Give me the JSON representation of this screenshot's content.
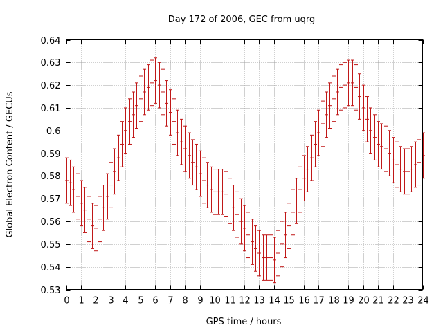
{
  "chart_data": {
    "type": "line",
    "title": "Day 172 of 2006, GEC from uqrg",
    "xlabel": "GPS time / hours",
    "ylabel": "Global Electron Content / GECUs",
    "xlim": [
      0,
      24
    ],
    "ylim": [
      0.53,
      0.64
    ],
    "xticks": [
      "0",
      "1",
      "2",
      "3",
      "4",
      "5",
      "6",
      "7",
      "8",
      "9",
      "10",
      "11",
      "12",
      "13",
      "14",
      "15",
      "16",
      "17",
      "18",
      "19",
      "20",
      "21",
      "22",
      "23",
      "24"
    ],
    "yticks": [
      "0.53",
      "0.54",
      "0.55",
      "0.56",
      "0.57",
      "0.58",
      "0.59",
      "0.6",
      "0.61",
      "0.62",
      "0.63",
      "0.64"
    ],
    "grid": true,
    "series_color": "#c01818",
    "series": [
      {
        "name": "GEC",
        "style": "errorbars",
        "x": [
          0.0,
          0.25,
          0.5,
          0.75,
          1.0,
          1.25,
          1.5,
          1.75,
          2.0,
          2.25,
          2.5,
          2.75,
          3.0,
          3.25,
          3.5,
          3.75,
          4.0,
          4.25,
          4.5,
          4.75,
          5.0,
          5.25,
          5.5,
          5.75,
          6.0,
          6.25,
          6.5,
          6.75,
          7.0,
          7.25,
          7.5,
          7.75,
          8.0,
          8.25,
          8.5,
          8.75,
          9.0,
          9.25,
          9.5,
          9.75,
          10.0,
          10.25,
          10.5,
          10.75,
          11.0,
          11.25,
          11.5,
          11.75,
          12.0,
          12.25,
          12.5,
          12.75,
          13.0,
          13.25,
          13.5,
          13.75,
          14.0,
          14.25,
          14.5,
          14.75,
          15.0,
          15.25,
          15.5,
          15.75,
          16.0,
          16.25,
          16.5,
          16.75,
          17.0,
          17.25,
          17.5,
          17.75,
          18.0,
          18.25,
          18.5,
          18.75,
          19.0,
          19.25,
          19.5,
          19.75,
          20.0,
          20.25,
          20.5,
          20.75,
          21.0,
          21.25,
          21.5,
          21.75,
          22.0,
          22.25,
          22.5,
          22.75,
          23.0,
          23.25,
          23.5,
          23.75,
          24.0
        ],
        "y": [
          0.578,
          0.577,
          0.574,
          0.571,
          0.568,
          0.565,
          0.561,
          0.558,
          0.557,
          0.561,
          0.566,
          0.571,
          0.576,
          0.582,
          0.588,
          0.594,
          0.6,
          0.604,
          0.607,
          0.611,
          0.614,
          0.617,
          0.619,
          0.621,
          0.622,
          0.62,
          0.617,
          0.612,
          0.608,
          0.604,
          0.599,
          0.595,
          0.592,
          0.589,
          0.586,
          0.584,
          0.581,
          0.578,
          0.576,
          0.574,
          0.573,
          0.573,
          0.573,
          0.572,
          0.569,
          0.566,
          0.563,
          0.56,
          0.557,
          0.554,
          0.551,
          0.548,
          0.546,
          0.544,
          0.544,
          0.544,
          0.543,
          0.546,
          0.55,
          0.554,
          0.558,
          0.564,
          0.569,
          0.574,
          0.579,
          0.583,
          0.588,
          0.594,
          0.599,
          0.603,
          0.607,
          0.611,
          0.614,
          0.617,
          0.619,
          0.62,
          0.621,
          0.621,
          0.619,
          0.615,
          0.61,
          0.605,
          0.6,
          0.597,
          0.594,
          0.593,
          0.592,
          0.59,
          0.587,
          0.585,
          0.583,
          0.582,
          0.582,
          0.583,
          0.585,
          0.586,
          0.589
        ],
        "err": [
          0.01,
          0.01,
          0.01,
          0.01,
          0.01,
          0.01,
          0.01,
          0.01,
          0.01,
          0.01,
          0.01,
          0.01,
          0.01,
          0.01,
          0.01,
          0.01,
          0.01,
          0.01,
          0.01,
          0.01,
          0.01,
          0.01,
          0.01,
          0.01,
          0.01,
          0.01,
          0.01,
          0.01,
          0.01,
          0.01,
          0.01,
          0.01,
          0.01,
          0.01,
          0.01,
          0.01,
          0.01,
          0.01,
          0.01,
          0.01,
          0.01,
          0.01,
          0.01,
          0.01,
          0.01,
          0.01,
          0.01,
          0.01,
          0.01,
          0.01,
          0.01,
          0.01,
          0.01,
          0.01,
          0.01,
          0.01,
          0.01,
          0.01,
          0.01,
          0.01,
          0.01,
          0.01,
          0.01,
          0.01,
          0.01,
          0.01,
          0.01,
          0.01,
          0.01,
          0.01,
          0.01,
          0.01,
          0.01,
          0.01,
          0.01,
          0.01,
          0.01,
          0.01,
          0.01,
          0.01,
          0.01,
          0.01,
          0.01,
          0.01,
          0.01,
          0.01,
          0.01,
          0.01,
          0.01,
          0.01,
          0.01,
          0.01,
          0.01,
          0.01,
          0.01,
          0.01,
          0.01
        ]
      }
    ]
  }
}
